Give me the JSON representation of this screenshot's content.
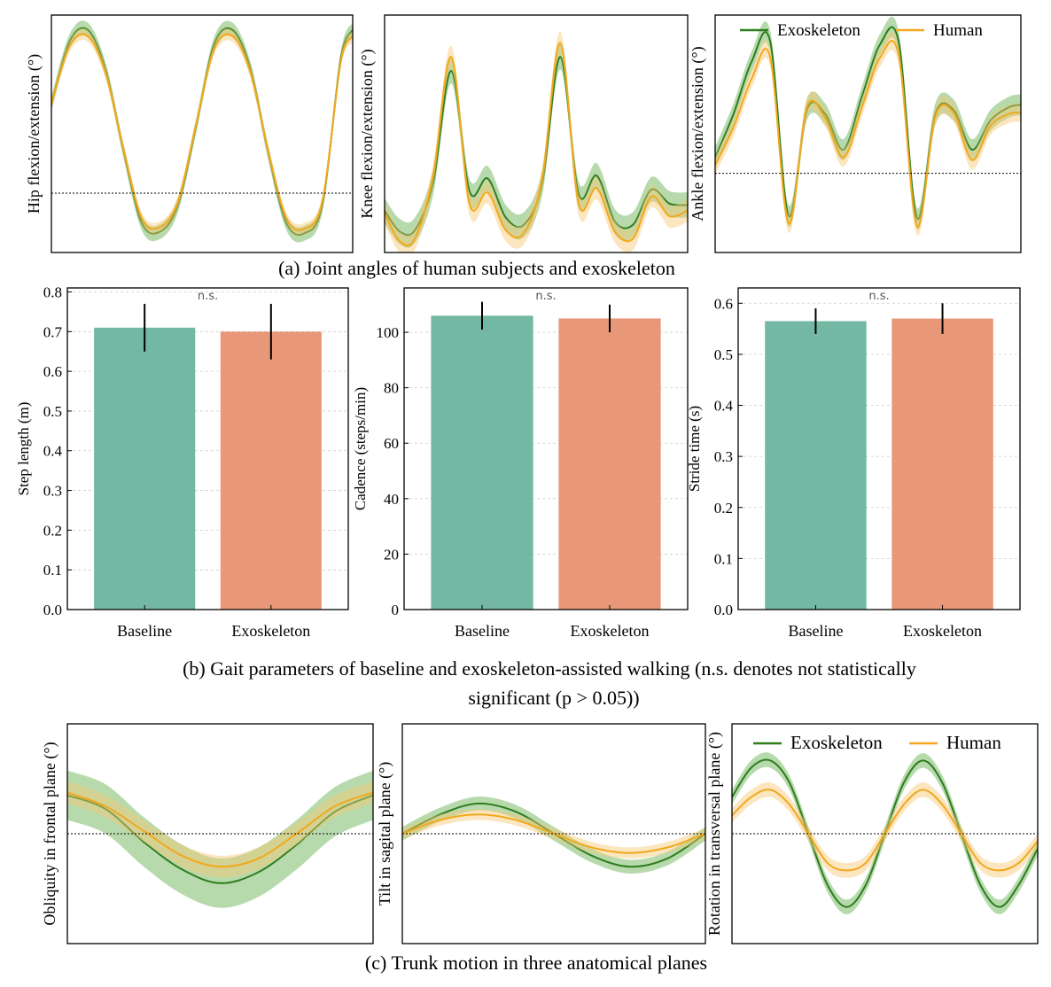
{
  "colors": {
    "exo": "#2e7d1f",
    "exo_band": "#5fae4a",
    "human": "#f2a81d",
    "human_band": "#f7c873",
    "baseline_bar": "#72b8a3",
    "exo_bar": "#e89878",
    "grid": "#cccccc"
  },
  "captions": {
    "a": "(a) Joint angles of human subjects and exoskeleton",
    "b_line1": "(b) Gait parameters of baseline and exoskeleton-assisted walking (n.s. denotes not statistically",
    "b_line2": "significant (p > 0.05))",
    "c": "(c) Trunk motion in three anatomical planes"
  },
  "legend": {
    "exo": "Exoskeleton",
    "human": "Human"
  },
  "chart_data": [
    {
      "id": "hip",
      "type": "line",
      "ylabel": "Hip flexion/extension (°)",
      "x": [
        0,
        0.06,
        0.12,
        0.18,
        0.24,
        0.3,
        0.36,
        0.42,
        0.48,
        0.54,
        0.6,
        0.66,
        0.72,
        0.78,
        0.84,
        0.9,
        0.96,
        1.0
      ],
      "ylim": [
        -4,
        12
      ],
      "reference": 0,
      "series": [
        {
          "name": "Exoskeleton",
          "band": 0.5,
          "values": [
            6.0,
            10.2,
            11.0,
            8.3,
            2.8,
            -2.0,
            -2.6,
            -0.8,
            4.5,
            10.0,
            11.0,
            8.4,
            2.7,
            -2.0,
            -2.7,
            -0.7,
            9.0,
            11.0
          ]
        },
        {
          "name": "Human",
          "band": 0.4,
          "values": [
            6.0,
            9.9,
            10.6,
            8.1,
            2.9,
            -1.7,
            -2.3,
            -0.6,
            4.6,
            9.7,
            10.6,
            8.2,
            2.8,
            -1.7,
            -2.4,
            -0.5,
            8.8,
            10.6
          ]
        }
      ]
    },
    {
      "id": "knee",
      "type": "line",
      "ylabel": "Knee flexion/extension (°)",
      "x": [
        0,
        0.05,
        0.1,
        0.16,
        0.22,
        0.28,
        0.34,
        0.4,
        0.46,
        0.52,
        0.58,
        0.64,
        0.7,
        0.76,
        0.82,
        0.88,
        0.94,
        1.0
      ],
      "ylim": [
        -3,
        14
      ],
      "reference": null,
      "series": [
        {
          "name": "Exoskeleton",
          "band": 0.9,
          "values": [
            0.0,
            -1.5,
            -1.4,
            2.0,
            10.0,
            1.4,
            2.3,
            -0.5,
            -1.0,
            2.0,
            11.0,
            1.2,
            2.5,
            -0.8,
            -1.0,
            1.5,
            0.5,
            0.4
          ]
        },
        {
          "name": "Human",
          "band": 0.8,
          "values": [
            -0.2,
            -2.2,
            -2.0,
            2.5,
            11.0,
            0.5,
            1.3,
            -1.4,
            -1.6,
            2.3,
            12.0,
            0.5,
            1.6,
            -1.5,
            -2.0,
            1.0,
            -0.4,
            0.0
          ]
        }
      ]
    },
    {
      "id": "ankle",
      "type": "line",
      "ylabel": "Ankle flexion/extension (°)",
      "x": [
        0,
        0.06,
        0.12,
        0.18,
        0.24,
        0.3,
        0.36,
        0.42,
        0.48,
        0.54,
        0.6,
        0.66,
        0.72,
        0.78,
        0.84,
        0.9,
        0.96,
        1.0
      ],
      "ylim": [
        -6,
        12
      ],
      "reference": 0,
      "series": [
        {
          "name": "Exoskeleton",
          "band": 0.8,
          "values": [
            1.2,
            4.5,
            8.5,
            10.0,
            -3.2,
            4.8,
            4.5,
            1.8,
            5.8,
            9.8,
            10.0,
            -3.4,
            4.5,
            4.8,
            1.8,
            4.0,
            5.0,
            5.2
          ]
        },
        {
          "name": "Human",
          "band": 0.7,
          "values": [
            0.6,
            3.5,
            7.2,
            8.8,
            -3.8,
            5.0,
            4.2,
            1.2,
            5.0,
            8.8,
            9.0,
            -4.0,
            4.3,
            4.6,
            1.0,
            3.6,
            4.5,
            4.6
          ]
        }
      ]
    },
    {
      "id": "step_length",
      "type": "bar",
      "ylabel": "Step length (m)",
      "categories": [
        "Baseline",
        "Exoskeleton"
      ],
      "values": [
        0.71,
        0.7
      ],
      "errors": [
        0.06,
        0.07
      ],
      "ylim": [
        0,
        0.81
      ],
      "yticks": [
        0.0,
        0.1,
        0.2,
        0.3,
        0.4,
        0.5,
        0.6,
        0.7,
        0.8
      ],
      "tick_labels": [
        "0.0",
        "0.1",
        "0.2",
        "0.3",
        "0.4",
        "0.5",
        "0.6",
        "0.7",
        "0.8"
      ],
      "annotation": "n.s."
    },
    {
      "id": "cadence",
      "type": "bar",
      "ylabel": "Cadence (steps/min)",
      "categories": [
        "Baseline",
        "Exoskeleton"
      ],
      "values": [
        106,
        105
      ],
      "errors": [
        5,
        5
      ],
      "ylim": [
        0,
        116
      ],
      "yticks": [
        0,
        20,
        40,
        60,
        80,
        100
      ],
      "tick_labels": [
        "0",
        "20",
        "40",
        "60",
        "80",
        "100"
      ],
      "annotation": "n.s."
    },
    {
      "id": "stride_time",
      "type": "bar",
      "ylabel": "Stride time (s)",
      "categories": [
        "Baseline",
        "Exoskeleton"
      ],
      "values": [
        0.565,
        0.57
      ],
      "errors": [
        0.025,
        0.03
      ],
      "ylim": [
        0,
        0.63
      ],
      "yticks": [
        0.0,
        0.1,
        0.2,
        0.3,
        0.4,
        0.5,
        0.6
      ],
      "tick_labels": [
        "0.0",
        "0.1",
        "0.2",
        "0.3",
        "0.4",
        "0.5",
        "0.6"
      ],
      "annotation": "n.s."
    },
    {
      "id": "obliquity",
      "type": "line",
      "ylabel": "Obliquity in frontal plane (°)",
      "x": [
        0,
        0.125,
        0.25,
        0.375,
        0.5,
        0.625,
        0.75,
        0.875,
        1.0
      ],
      "ylim": [
        -4,
        4
      ],
      "reference": 0,
      "series": [
        {
          "name": "Exoskeleton",
          "band": 0.9,
          "values": [
            1.4,
            0.9,
            -0.3,
            -1.3,
            -1.8,
            -1.4,
            -0.4,
            0.8,
            1.4
          ]
        },
        {
          "name": "Human",
          "band": 0.4,
          "values": [
            1.5,
            1.0,
            0.1,
            -0.8,
            -1.2,
            -0.9,
            0.0,
            1.0,
            1.5
          ]
        }
      ]
    },
    {
      "id": "tilt",
      "type": "line",
      "ylabel": "Tilt in sagital plane (°)",
      "x": [
        0,
        0.125,
        0.25,
        0.375,
        0.5,
        0.625,
        0.75,
        0.875,
        1.0
      ],
      "ylim": [
        -4,
        4
      ],
      "reference": 0,
      "series": [
        {
          "name": "Exoskeleton",
          "band": 0.25,
          "values": [
            0.0,
            0.7,
            1.1,
            0.8,
            0.0,
            -0.8,
            -1.2,
            -0.9,
            0.0
          ]
        },
        {
          "name": "Human",
          "band": 0.2,
          "values": [
            0.0,
            0.5,
            0.7,
            0.5,
            0.0,
            -0.5,
            -0.7,
            -0.5,
            0.0
          ]
        }
      ]
    },
    {
      "id": "rotation",
      "type": "line",
      "ylabel": "Rotation in transversal plane (°)",
      "x": [
        0,
        0.0625,
        0.125,
        0.1875,
        0.25,
        0.3125,
        0.375,
        0.4375,
        0.5,
        0.5625,
        0.625,
        0.6875,
        0.75,
        0.8125,
        0.875,
        0.9375,
        1.0
      ],
      "ylim": [
        -6,
        6
      ],
      "reference": 0,
      "series": [
        {
          "name": "Exoskeleton",
          "band": 0.4,
          "values": [
            2.0,
            3.6,
            4.0,
            2.8,
            0.0,
            -2.8,
            -4.0,
            -2.8,
            0.0,
            2.8,
            4.0,
            2.8,
            0.0,
            -2.8,
            -4.0,
            -2.8,
            -0.8
          ]
        },
        {
          "name": "Human",
          "band": 0.4,
          "values": [
            1.0,
            2.0,
            2.4,
            1.6,
            0.0,
            -1.6,
            -2.0,
            -1.6,
            0.0,
            1.6,
            2.4,
            1.6,
            0.0,
            -1.6,
            -2.0,
            -1.6,
            -0.4
          ]
        }
      ]
    }
  ]
}
